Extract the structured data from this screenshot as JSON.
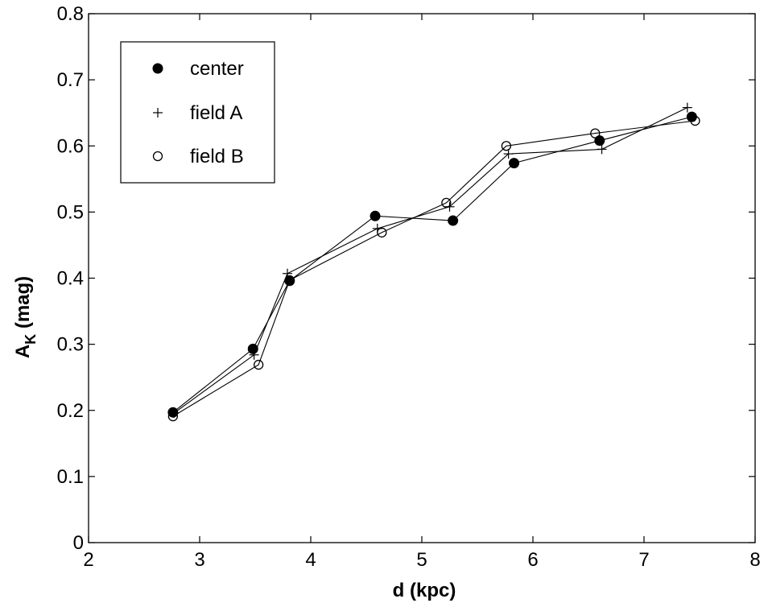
{
  "chart_data": {
    "type": "line",
    "xlabel": "d (kpc)",
    "ylabel_main": "A",
    "ylabel_sub": "K",
    "ylabel_unit": " (mag)",
    "xlim": [
      2,
      8
    ],
    "ylim": [
      0,
      0.8
    ],
    "xticks": [
      2,
      3,
      4,
      5,
      6,
      7,
      8
    ],
    "yticks": [
      0,
      0.1,
      0.2,
      0.3,
      0.4,
      0.5,
      0.6,
      0.7,
      0.8
    ],
    "grid": false,
    "legend_position": "top-left",
    "series": [
      {
        "name": "center",
        "marker": "filled-circle",
        "x": [
          2.76,
          3.48,
          3.81,
          4.58,
          5.28,
          5.83,
          6.6,
          7.43
        ],
        "y": [
          0.197,
          0.293,
          0.396,
          0.494,
          0.487,
          0.574,
          0.608,
          0.644
        ]
      },
      {
        "name": "field A",
        "marker": "plus",
        "x": [
          2.77,
          3.49,
          3.79,
          4.6,
          5.25,
          5.78,
          6.62,
          7.39
        ],
        "y": [
          0.196,
          0.284,
          0.407,
          0.475,
          0.508,
          0.588,
          0.595,
          0.658
        ]
      },
      {
        "name": "field B",
        "marker": "open-circle",
        "x": [
          2.76,
          3.53,
          3.81,
          4.64,
          5.22,
          5.76,
          6.56,
          7.46
        ],
        "y": [
          0.191,
          0.269,
          0.397,
          0.469,
          0.514,
          0.6,
          0.619,
          0.638
        ]
      }
    ]
  }
}
